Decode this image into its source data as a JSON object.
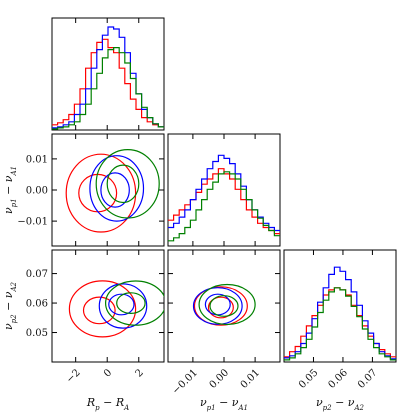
{
  "chart_data": {
    "type": "corner",
    "parameters": [
      {
        "id": "dR",
        "label": "R_p − R_A",
        "label_html": "R<tspan baseline-shift='sub' font-size='7'>p</tspan> − R<tspan baseline-shift='sub' font-size='7'>A</tspan>",
        "range": [
          -3.5,
          3.6
        ],
        "ticks": [
          -2,
          0,
          2
        ],
        "tick_labels": [
          "−2",
          "0",
          "2"
        ]
      },
      {
        "id": "dnu1",
        "label": "ν_p1 − ν_A1",
        "label_html": "ν<tspan baseline-shift='sub' font-size='7'>p1</tspan> − ν<tspan baseline-shift='sub' font-size='7'>A1</tspan>",
        "range": [
          -0.018,
          0.018
        ],
        "ticks": [
          -0.01,
          0.0,
          0.01
        ],
        "tick_labels": [
          "−0.01",
          "0.00",
          "0.01"
        ]
      },
      {
        "id": "dnu2",
        "label": "ν_p2 − ν_A2",
        "label_html": "ν<tspan baseline-shift='sub' font-size='7'>p2</tspan> − ν<tspan baseline-shift='sub' font-size='7'>A2</tspan>",
        "range": [
          0.04,
          0.078
        ],
        "ticks": [
          0.05,
          0.06,
          0.07
        ],
        "tick_labels": [
          "0.05",
          "0.06",
          "0.07"
        ]
      }
    ],
    "series": [
      {
        "color": "#ff0000",
        "hist": [
          [
            0.05,
            0.07,
            0.1,
            0.15,
            0.25,
            0.4,
            0.6,
            0.75,
            0.85,
            0.88,
            0.8,
            0.75,
            0.6,
            0.45,
            0.3,
            0.2,
            0.12,
            0.08,
            0.05,
            0.03
          ],
          [
            0.25,
            0.3,
            0.35,
            0.4,
            0.45,
            0.52,
            0.6,
            0.65,
            0.7,
            0.75,
            0.7,
            0.65,
            0.55,
            0.45,
            0.35,
            0.28,
            0.22,
            0.18,
            0.15,
            0.12
          ],
          [
            0.05,
            0.1,
            0.15,
            0.25,
            0.35,
            0.45,
            0.55,
            0.65,
            0.7,
            0.72,
            0.7,
            0.65,
            0.55,
            0.45,
            0.35,
            0.25,
            0.18,
            0.12,
            0.08,
            0.05
          ]
        ],
        "ellipses": {
          "dR-dnu1": [
            {
              "cx": -0.6,
              "cy": -0.001,
              "rx": 1.2,
              "ry": 0.006
            },
            {
              "cx": -0.4,
              "cy": -0.001,
              "rx": 2.2,
              "ry": 0.0125
            }
          ],
          "dR-dnu2": [
            {
              "cx": -0.5,
              "cy": 0.0575,
              "rx": 1.0,
              "ry": 0.0045
            },
            {
              "cx": -0.3,
              "cy": 0.058,
              "rx": 2.1,
              "ry": 0.0095
            }
          ],
          "dnu1-dnu2": [
            {
              "cx": -0.001,
              "cy": 0.0585,
              "rx": 0.004,
              "ry": 0.0035
            },
            {
              "cx": -0.001,
              "cy": 0.059,
              "rx": 0.0085,
              "ry": 0.0065
            }
          ]
        }
      },
      {
        "color": "#0000ff",
        "hist": [
          [
            0.02,
            0.03,
            0.05,
            0.08,
            0.15,
            0.25,
            0.4,
            0.6,
            0.78,
            0.92,
            1.0,
            0.98,
            0.9,
            0.75,
            0.55,
            0.35,
            0.2,
            0.12,
            0.06,
            0.03
          ],
          [
            0.18,
            0.22,
            0.28,
            0.35,
            0.45,
            0.55,
            0.65,
            0.75,
            0.82,
            0.88,
            0.85,
            0.8,
            0.7,
            0.58,
            0.45,
            0.35,
            0.28,
            0.22,
            0.18,
            0.15
          ],
          [
            0.04,
            0.06,
            0.1,
            0.18,
            0.28,
            0.42,
            0.58,
            0.72,
            0.85,
            0.92,
            0.88,
            0.8,
            0.68,
            0.55,
            0.4,
            0.28,
            0.18,
            0.1,
            0.06,
            0.03
          ]
        ],
        "ellipses": {
          "dR-dnu1": [
            {
              "cx": 0.5,
              "cy": 0.0,
              "rx": 0.9,
              "ry": 0.0055
            },
            {
              "cx": 0.6,
              "cy": 0.0005,
              "rx": 1.7,
              "ry": 0.0105
            }
          ],
          "dR-dnu2": [
            {
              "cx": 0.9,
              "cy": 0.0595,
              "rx": 0.8,
              "ry": 0.0035
            },
            {
              "cx": 1.0,
              "cy": 0.059,
              "rx": 1.5,
              "ry": 0.0075
            }
          ],
          "dnu1-dnu2": [
            {
              "cx": -0.002,
              "cy": 0.0595,
              "rx": 0.004,
              "ry": 0.0035
            },
            {
              "cx": -0.002,
              "cy": 0.059,
              "rx": 0.0078,
              "ry": 0.0062
            }
          ]
        }
      },
      {
        "color": "#008000",
        "hist": [
          [
            0.01,
            0.02,
            0.03,
            0.05,
            0.08,
            0.15,
            0.25,
            0.4,
            0.55,
            0.7,
            0.78,
            0.8,
            0.75,
            0.65,
            0.5,
            0.35,
            0.22,
            0.12,
            0.06,
            0.03
          ],
          [
            0.05,
            0.08,
            0.12,
            0.18,
            0.25,
            0.35,
            0.45,
            0.55,
            0.62,
            0.7,
            0.72,
            0.7,
            0.65,
            0.55,
            0.45,
            0.35,
            0.27,
            0.2,
            0.15,
            0.1
          ],
          [
            0.02,
            0.04,
            0.08,
            0.14,
            0.22,
            0.34,
            0.48,
            0.6,
            0.68,
            0.72,
            0.7,
            0.64,
            0.54,
            0.44,
            0.32,
            0.22,
            0.14,
            0.08,
            0.05,
            0.02
          ]
        ],
        "ellipses": {
          "dR-dnu1": [
            {
              "cx": 1.0,
              "cy": 0.002,
              "rx": 1.0,
              "ry": 0.006
            },
            {
              "cx": 1.3,
              "cy": 0.002,
              "rx": 2.0,
              "ry": 0.011
            }
          ],
          "dR-dnu2": [
            {
              "cx": 1.5,
              "cy": 0.06,
              "rx": 0.9,
              "ry": 0.0035
            },
            {
              "cx": 1.8,
              "cy": 0.06,
              "rx": 1.9,
              "ry": 0.0075
            }
          ],
          "dnu1-dnu2": [
            {
              "cx": 0.0,
              "cy": 0.059,
              "rx": 0.0045,
              "ry": 0.0035
            },
            {
              "cx": 0.001,
              "cy": 0.0595,
              "rx": 0.009,
              "ry": 0.0068
            }
          ]
        }
      }
    ]
  }
}
